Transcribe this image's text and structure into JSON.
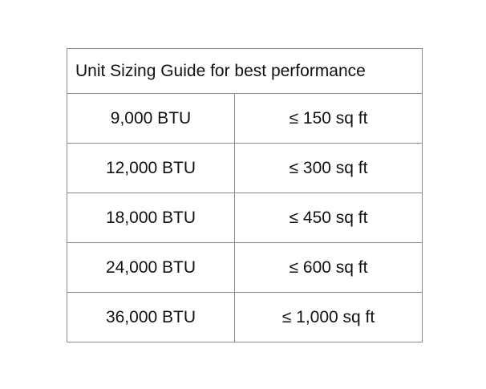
{
  "table": {
    "title": "Unit Sizing Guide for best performance",
    "rows": [
      {
        "capacity": "9,000 BTU",
        "area": "≤ 150 sq ft"
      },
      {
        "capacity": "12,000 BTU",
        "area": "≤ 300 sq ft"
      },
      {
        "capacity": "18,000 BTU",
        "area": "≤ 450 sq ft"
      },
      {
        "capacity": "24,000 BTU",
        "area": "≤ 600 sq ft"
      },
      {
        "capacity": "36,000 BTU",
        "area": "≤ 1,000 sq ft"
      }
    ]
  }
}
